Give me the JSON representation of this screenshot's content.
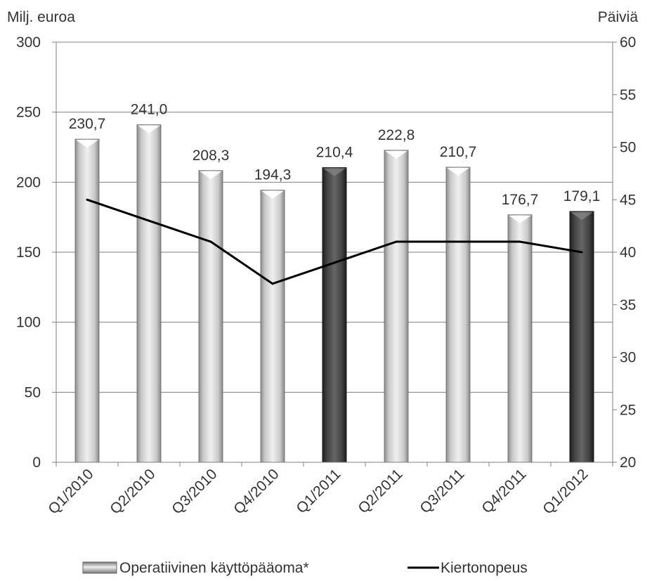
{
  "chart_data": {
    "type": "bar",
    "categories": [
      "Q1/2010",
      "Q2/2010",
      "Q3/2010",
      "Q4/2010",
      "Q1/2011",
      "Q2/2011",
      "Q3/2011",
      "Q4/2011",
      "Q1/2012"
    ],
    "left_axis": {
      "title": "Milj. euroa",
      "ylim": [
        0,
        300
      ],
      "ticks": [
        "0",
        "50",
        "100",
        "150",
        "200",
        "250",
        "300"
      ]
    },
    "right_axis": {
      "title": "Päiviä",
      "ylim": [
        20,
        60
      ],
      "ticks": [
        "20",
        "25",
        "30",
        "35",
        "40",
        "45",
        "50",
        "55",
        "60"
      ]
    },
    "series": [
      {
        "name": "Operatiivinen käyttöpääoma*",
        "type": "bar",
        "axis": "left",
        "values": [
          230.7,
          241.0,
          208.3,
          194.3,
          210.4,
          222.8,
          210.7,
          176.7,
          179.1
        ],
        "data_labels": [
          "230,7",
          "241,0",
          "208,3",
          "194,3",
          "210,4",
          "222,8",
          "210,7",
          "176,7",
          "179,1"
        ],
        "highlighted_categories": [
          "Q1/2011",
          "Q1/2012"
        ]
      },
      {
        "name": "Kiertonopeus",
        "type": "line",
        "axis": "right",
        "values": [
          45,
          43,
          41,
          37,
          39,
          41,
          41,
          41,
          40
        ]
      }
    ],
    "grid": true,
    "legend_position": "bottom",
    "colors": {
      "bar_light": "#cfcfcf",
      "bar_dark": "#3a3a3a",
      "line": "#000000",
      "grid": "#7f7f7f",
      "text": "#333333"
    }
  }
}
